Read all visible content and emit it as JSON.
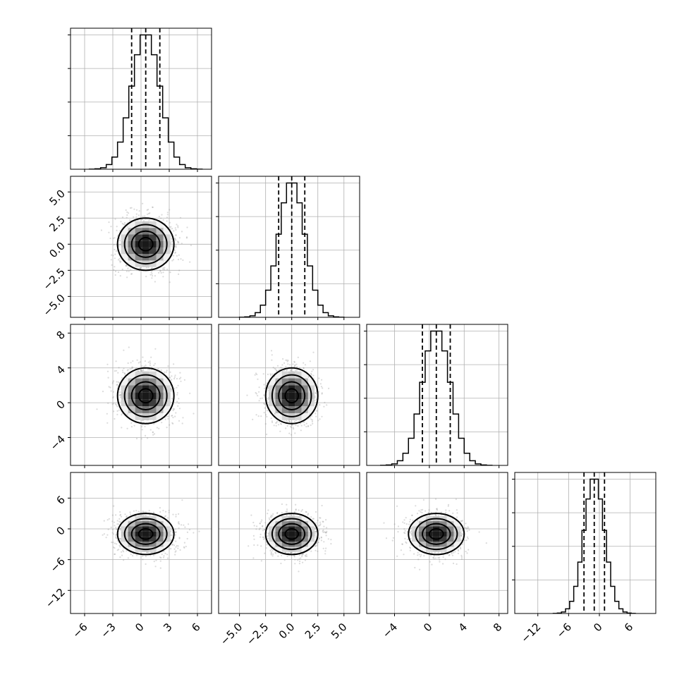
{
  "chart_data": {
    "type": "corner",
    "grid": true,
    "parameters": [
      {
        "mean": 0.5,
        "sd": 1.5,
        "q16": -1.0,
        "q50": 0.5,
        "q84": 2.0,
        "range": [
          -7.5,
          7.5
        ],
        "ticks": [
          -6,
          -3,
          0,
          3,
          6
        ],
        "tick_labels": [
          "−6",
          "−3",
          "0",
          "3",
          "6"
        ]
      },
      {
        "mean": 0.0,
        "sd": 1.25,
        "q16": -1.25,
        "q50": 0.0,
        "q84": 1.25,
        "range": [
          -7.0,
          6.5
        ],
        "ticks": [
          -5,
          -2.5,
          0,
          2.5,
          5
        ],
        "tick_labels": [
          "−5.0",
          "−2.5",
          "0.0",
          "2.5",
          "5.0"
        ]
      },
      {
        "mean": 0.8,
        "sd": 1.6,
        "q16": -0.8,
        "q50": 0.8,
        "q84": 2.4,
        "range": [
          -7.2,
          9.0
        ],
        "ticks": [
          -4,
          0,
          4,
          8
        ],
        "tick_labels": [
          "−4",
          "0",
          "4",
          "8"
        ]
      },
      {
        "mean": -1.0,
        "sd": 2.0,
        "q16": -3.0,
        "q50": -1.0,
        "q84": 1.0,
        "range": [
          -16.5,
          11.0
        ],
        "ticks": [
          -12,
          -6,
          0,
          6
        ],
        "tick_labels": [
          "−12",
          "−6",
          "0",
          "6"
        ]
      }
    ],
    "xlabels": [],
    "ylabels": []
  }
}
